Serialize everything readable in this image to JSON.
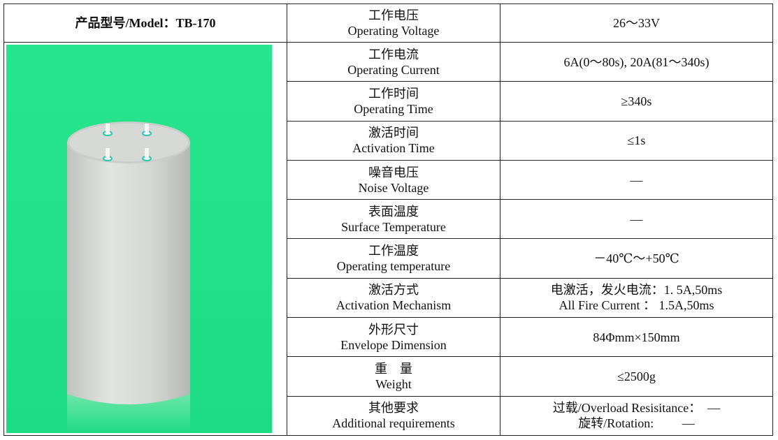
{
  "header": {
    "title": "产品型号/Model：TB-170"
  },
  "rows": [
    {
      "zh": "工作电压",
      "en": "Operating Voltage",
      "value": [
        "26～33V"
      ]
    },
    {
      "zh": "工作电流",
      "en": "Operating Current",
      "value": [
        "6A(0～80s), 20A(81～340s)"
      ]
    },
    {
      "zh": "工作时间",
      "en": "Operating Time",
      "value": [
        "≥340s"
      ]
    },
    {
      "zh": "激活时间",
      "en": "Activation Time",
      "value": [
        "≤1s"
      ]
    },
    {
      "zh": "噪音电压",
      "en": "Noise Voltage",
      "value": [
        "—"
      ]
    },
    {
      "zh": "表面温度",
      "en": "Surface Temperature",
      "value": [
        "—"
      ]
    },
    {
      "zh": "工作温度",
      "en": "Operating temperature",
      "value": [
        "－40℃～+50℃"
      ]
    },
    {
      "zh": "激活方式",
      "en": "Activation Mechanism",
      "value": [
        "电激活，发火电流：1. 5A,50ms",
        "All Fire Current ： 1.5A,50ms"
      ]
    },
    {
      "zh": "外形尺寸",
      "en": "Envelope Dimension",
      "value": [
        "84Φmm×150mm"
      ]
    },
    {
      "zh": "重　量",
      "en": "Weight",
      "value": [
        "≤2500g"
      ]
    },
    {
      "zh": "其他要求",
      "en": "Additional requirements",
      "value": [
        "过载/Overload Resisitance：  —",
        "旋转/Rotation:         —"
      ]
    }
  ]
}
